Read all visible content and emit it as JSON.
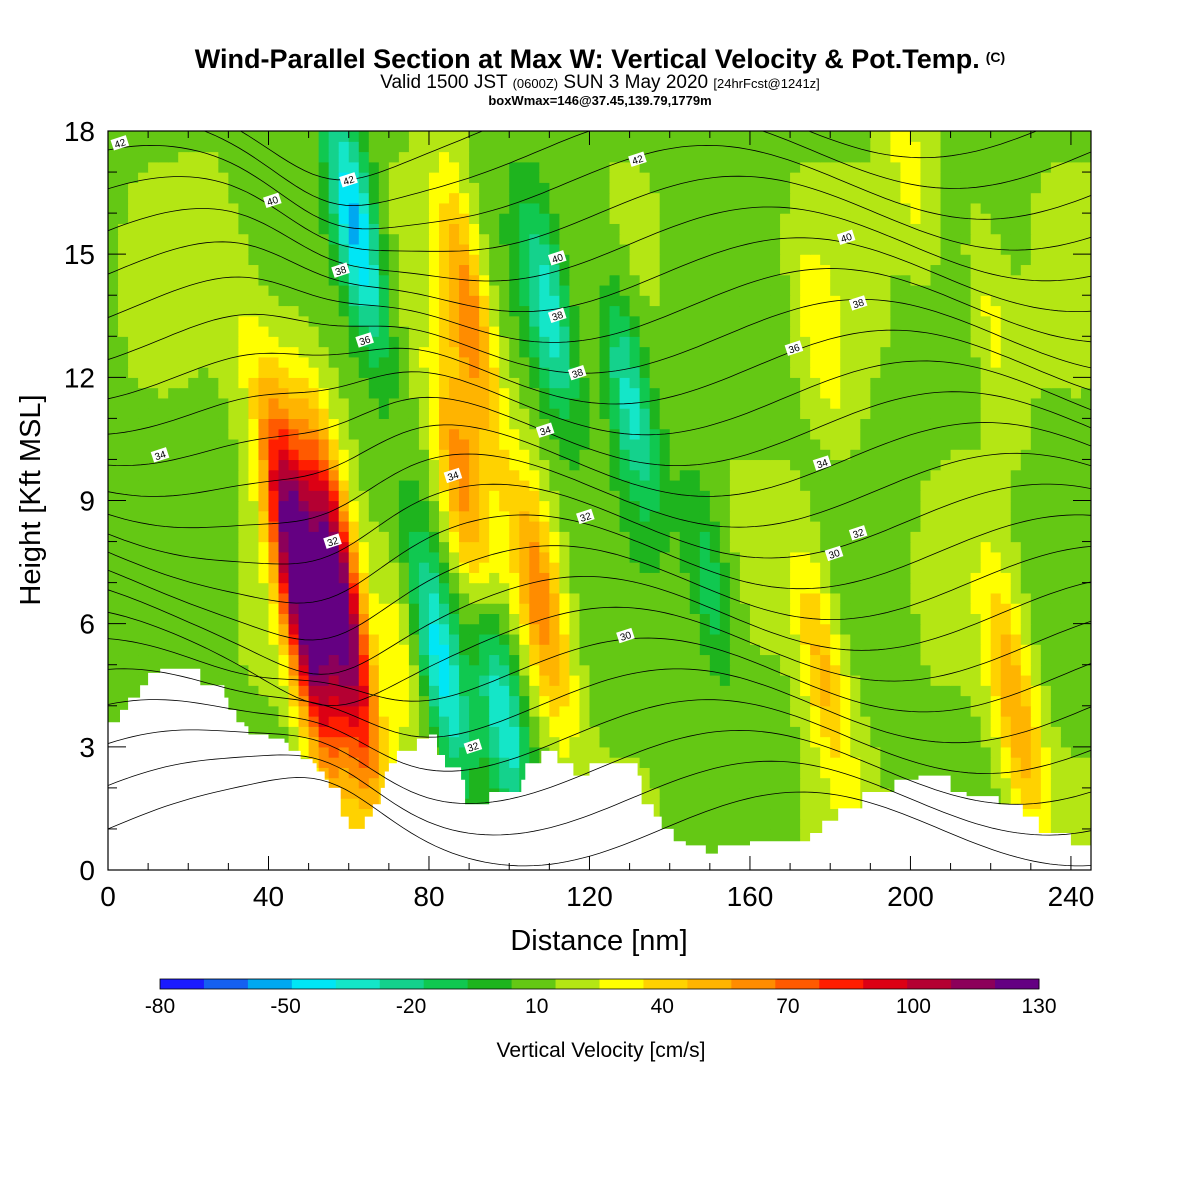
{
  "header": {
    "title": "Wind-Parallel Section at Max W: Vertical Velocity & Pot.Temp.",
    "title_mark": "(C)",
    "valid_prefix": "Valid 1500 JST",
    "valid_utc": "(0600Z)",
    "valid_date": "SUN 3 May 2020",
    "forecast": "[24hrFcst@1241z]",
    "box_info": "boxWmax=146@37.45,139.79,1779m"
  },
  "colors": {
    "scale": [
      "#1a1aff",
      "#1560f0",
      "#00a8f0",
      "#00e6f5",
      "#14e6c8",
      "#14d28c",
      "#10c850",
      "#1eb41e",
      "#64c814",
      "#b4e614",
      "#ffff00",
      "#ffd200",
      "#ffb400",
      "#ff8c00",
      "#ff5a00",
      "#ff1e00",
      "#dc0014",
      "#b40032",
      "#8c005a",
      "#640082"
    ],
    "terrain": "#ffffff",
    "contour": "#000000"
  },
  "chart_data": {
    "type": "heatmap",
    "xlabel": "Distance [nm]",
    "ylabel": "Height [Kft MSL]",
    "xlim": [
      0,
      245
    ],
    "ylim": [
      0,
      18
    ],
    "x_ticks": [
      0,
      40,
      80,
      120,
      160,
      200,
      240
    ],
    "y_ticks": [
      0,
      3,
      6,
      9,
      12,
      15,
      18
    ],
    "colorbar": {
      "label": "Vertical Velocity [cm/s]",
      "range": [
        -80,
        130
      ],
      "step": 10,
      "tick_labels": [
        "-80",
        "-50",
        "-20",
        "10",
        "40",
        "70",
        "100",
        "130"
      ]
    },
    "vertical_velocity_features": [
      {
        "x": 48,
        "z": 7.0,
        "peak": 130
      },
      {
        "x": 58,
        "z": 6.5,
        "peak": 120
      },
      {
        "x": 73,
        "z": 5.5,
        "peak": 30
      },
      {
        "x": 88,
        "z": 9.5,
        "peak": 55
      },
      {
        "x": 90,
        "z": 13.5,
        "peak": 60
      },
      {
        "x": 108,
        "z": 6.5,
        "peak": 55
      },
      {
        "x": 83,
        "z": 5.0,
        "peak": -45
      },
      {
        "x": 98,
        "z": 4.0,
        "peak": -40
      },
      {
        "x": 62,
        "z": 15.5,
        "peak": -55
      },
      {
        "x": 110,
        "z": 13.5,
        "peak": -35
      },
      {
        "x": 130,
        "z": 11.5,
        "peak": -35
      },
      {
        "x": 178,
        "z": 5.0,
        "peak": 45
      },
      {
        "x": 226,
        "z": 4.0,
        "peak": 50
      },
      {
        "x": 178,
        "z": 13.0,
        "peak": 25
      },
      {
        "x": 220,
        "z": 13.5,
        "peak": 25
      },
      {
        "x": 200,
        "z": 17.0,
        "peak": 25
      },
      {
        "x": 30,
        "z": 14.0,
        "peak": 18
      },
      {
        "x": 150,
        "z": 7.0,
        "peak": -20
      }
    ],
    "potential_temperature_labels": [
      {
        "text": "42",
        "x": 3,
        "z": 17.7
      },
      {
        "text": "42",
        "x": 60,
        "z": 16.8
      },
      {
        "text": "42",
        "x": 132,
        "z": 17.3
      },
      {
        "text": "40",
        "x": 41,
        "z": 16.3
      },
      {
        "text": "40",
        "x": 112,
        "z": 14.9
      },
      {
        "text": "40",
        "x": 184,
        "z": 15.4
      },
      {
        "text": "38",
        "x": 58,
        "z": 14.6
      },
      {
        "text": "38",
        "x": 112,
        "z": 13.5
      },
      {
        "text": "38",
        "x": 117,
        "z": 12.1
      },
      {
        "text": "38",
        "x": 187,
        "z": 13.8
      },
      {
        "text": "36",
        "x": 64,
        "z": 12.9
      },
      {
        "text": "36",
        "x": 171,
        "z": 12.7
      },
      {
        "text": "34",
        "x": 13,
        "z": 10.1
      },
      {
        "text": "34",
        "x": 86,
        "z": 9.6
      },
      {
        "text": "34",
        "x": 109,
        "z": 10.7
      },
      {
        "text": "34",
        "x": 178,
        "z": 9.9
      },
      {
        "text": "32",
        "x": 56,
        "z": 8.0
      },
      {
        "text": "32",
        "x": 119,
        "z": 8.6
      },
      {
        "text": "32",
        "x": 187,
        "z": 8.2
      },
      {
        "text": "30",
        "x": 181,
        "z": 7.7
      },
      {
        "text": "30",
        "x": 129,
        "z": 5.7
      },
      {
        "text": "32",
        "x": 91,
        "z": 3.0
      }
    ],
    "terrain_profile": {
      "x": [
        0,
        3,
        5,
        8,
        10,
        13,
        16,
        20,
        23,
        29,
        30,
        32,
        34,
        35,
        40,
        44,
        45,
        48,
        51,
        52,
        54,
        55,
        58,
        60,
        61,
        64,
        66,
        68,
        69,
        70,
        72,
        77,
        80,
        82,
        84,
        88,
        89,
        93,
        95,
        103,
        104,
        108,
        112,
        116,
        120,
        124,
        126,
        132,
        133,
        136,
        138,
        141,
        144,
        149,
        152,
        160,
        164,
        175,
        178,
        182,
        188,
        196,
        202,
        205,
        210,
        214,
        222,
        228,
        232,
        240,
        245
      ],
      "z": [
        3.6,
        3.9,
        4.2,
        4.5,
        4.8,
        4.9,
        4.9,
        4.9,
        4.5,
        4.2,
        3.9,
        3.6,
        3.5,
        3.3,
        3.2,
        3.1,
        2.9,
        2.7,
        2.6,
        2.4,
        2.2,
        2.0,
        1.3,
        1.0,
        1.0,
        1.3,
        1.6,
        2.0,
        2.4,
        2.6,
        2.9,
        3.2,
        3.3,
        2.8,
        2.5,
        2.2,
        1.6,
        1.6,
        1.9,
        2.2,
        2.6,
        2.9,
        2.6,
        2.3,
        2.6,
        2.6,
        2.6,
        2.3,
        1.6,
        1.3,
        1.0,
        0.7,
        0.6,
        0.4,
        0.6,
        0.7,
        0.7,
        0.9,
        1.2,
        1.5,
        1.9,
        2.2,
        2.3,
        2.3,
        1.9,
        1.8,
        1.6,
        1.3,
        0.9,
        0.6,
        0.4
      ]
    }
  }
}
